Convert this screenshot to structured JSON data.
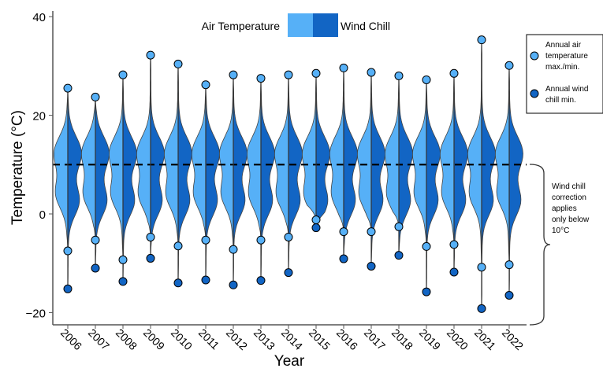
{
  "chart_data": {
    "type": "violin",
    "xlabel": "Year",
    "ylabel": "Temperature (°C)",
    "ylim": [
      -22,
      41
    ],
    "yticks": [
      40,
      20,
      0,
      -20
    ],
    "ytick_labels": [
      "40",
      "20",
      "0",
      "−20"
    ],
    "threshold": 10,
    "legend": {
      "placement": "top",
      "entries": [
        "Air Temperature",
        "Wind Chill"
      ],
      "colors": [
        "#56B0F7",
        "#1265C4"
      ]
    },
    "point_legend": {
      "placement": "right",
      "entries": [
        "Annual air temperature max./min.",
        "Annual wind chill min."
      ],
      "lines": [
        [
          "Annual air",
          "temperature",
          "max./min."
        ],
        [
          "Annual wind",
          "chill min."
        ]
      ]
    },
    "annotation": {
      "lines": [
        "Wind chill",
        "correction",
        "applies",
        "only below",
        "10°C"
      ]
    },
    "categories": [
      "2006",
      "2007",
      "2008",
      "2009",
      "2010",
      "2011",
      "2012",
      "2013",
      "2014",
      "2015",
      "2016",
      "2017",
      "2018",
      "2019",
      "2020",
      "2021",
      "2022"
    ],
    "air_max": [
      25.5,
      23.7,
      28.2,
      32.2,
      30.4,
      26.2,
      28.2,
      27.5,
      28.2,
      28.5,
      29.6,
      28.7,
      28.0,
      27.2,
      28.5,
      35.3,
      30.1
    ],
    "air_min": [
      -7.5,
      -5.3,
      -9.3,
      -4.7,
      -6.5,
      -5.3,
      -7.2,
      -5.3,
      -4.7,
      -1.2,
      -3.6,
      -3.6,
      -2.6,
      -6.6,
      -6.2,
      -10.8,
      -10.3
    ],
    "wind_chill_min": [
      -15.2,
      -11.0,
      -13.7,
      -9.0,
      -14.0,
      -13.4,
      -14.4,
      -13.5,
      -11.9,
      -2.8,
      -9.1,
      -10.6,
      -8.4,
      -15.8,
      -11.8,
      -19.2,
      -16.5
    ]
  }
}
